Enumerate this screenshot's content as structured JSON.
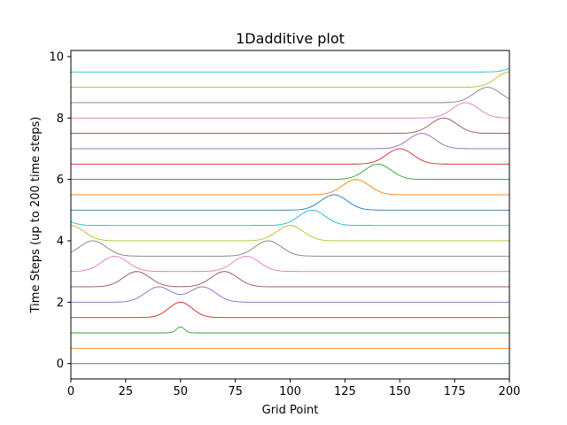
{
  "chart_data": {
    "type": "line",
    "title": "1Dadditive plot",
    "xlabel": "Grid Point",
    "ylabel": "Time Steps (up to 200 time steps)",
    "xlim": [
      0,
      200
    ],
    "ylim": [
      -0.5,
      10.2
    ],
    "xticks": [
      0,
      25,
      50,
      75,
      100,
      125,
      150,
      175,
      200
    ],
    "yticks": [
      0,
      2,
      4,
      6,
      8,
      10
    ],
    "grid": false,
    "legend": "none",
    "x_points": 201,
    "pulse_width": 8.5,
    "series": [
      {
        "offset": 0.0,
        "color": "#1f77b4",
        "pulses": []
      },
      {
        "offset": 0.5,
        "color": "#ff7f0e",
        "pulses": []
      },
      {
        "offset": 1.0,
        "color": "#2ca02c",
        "pulses": [
          {
            "center": 50,
            "amplitude": 0.2,
            "width": 2.5
          }
        ]
      },
      {
        "offset": 1.5,
        "color": "#d62728",
        "pulses": [
          {
            "center": 50,
            "amplitude": 0.5,
            "width": 7.5
          }
        ]
      },
      {
        "offset": 2.0,
        "color": "#9467bd",
        "pulses": [
          {
            "center": 40,
            "amplitude": 0.5
          },
          {
            "center": 60,
            "amplitude": 0.5
          }
        ]
      },
      {
        "offset": 2.5,
        "color": "#8c564b",
        "pulses": [
          {
            "center": 30,
            "amplitude": 0.5
          },
          {
            "center": 70,
            "amplitude": 0.5
          }
        ]
      },
      {
        "offset": 3.0,
        "color": "#e377c2",
        "pulses": [
          {
            "center": 20,
            "amplitude": 0.5
          },
          {
            "center": 80,
            "amplitude": 0.5
          }
        ]
      },
      {
        "offset": 3.5,
        "color": "#7f7f7f",
        "pulses": [
          {
            "center": 10,
            "amplitude": 0.5
          },
          {
            "center": 90,
            "amplitude": 0.5
          }
        ]
      },
      {
        "offset": 4.0,
        "color": "#bcbd22",
        "pulses": [
          {
            "center": 0,
            "amplitude": 0.5
          },
          {
            "center": 100,
            "amplitude": 0.5
          }
        ]
      },
      {
        "offset": 4.5,
        "color": "#17becf",
        "pulses": [
          {
            "center": -10,
            "amplitude": 0.5
          },
          {
            "center": 110,
            "amplitude": 0.5
          }
        ]
      },
      {
        "offset": 5.0,
        "color": "#1f77b4",
        "pulses": [
          {
            "center": 120,
            "amplitude": 0.5
          }
        ]
      },
      {
        "offset": 5.5,
        "color": "#ff7f0e",
        "pulses": [
          {
            "center": 130,
            "amplitude": 0.5
          }
        ]
      },
      {
        "offset": 6.0,
        "color": "#2ca02c",
        "pulses": [
          {
            "center": 140,
            "amplitude": 0.5
          }
        ]
      },
      {
        "offset": 6.5,
        "color": "#d62728",
        "pulses": [
          {
            "center": 150,
            "amplitude": 0.5
          }
        ]
      },
      {
        "offset": 7.0,
        "color": "#9467bd",
        "pulses": [
          {
            "center": 160,
            "amplitude": 0.5
          }
        ]
      },
      {
        "offset": 7.5,
        "color": "#8c564b",
        "pulses": [
          {
            "center": 170,
            "amplitude": 0.5
          }
        ]
      },
      {
        "offset": 8.0,
        "color": "#e377c2",
        "pulses": [
          {
            "center": 180,
            "amplitude": 0.5
          }
        ]
      },
      {
        "offset": 8.5,
        "color": "#7f7f7f",
        "pulses": [
          {
            "center": 190,
            "amplitude": 0.5
          }
        ]
      },
      {
        "offset": 9.0,
        "color": "#bcbd22",
        "pulses": [
          {
            "center": 200,
            "amplitude": 0.5
          }
        ]
      },
      {
        "offset": 9.5,
        "color": "#17becf",
        "pulses": [
          {
            "center": 210,
            "amplitude": 0.5
          }
        ]
      }
    ]
  }
}
